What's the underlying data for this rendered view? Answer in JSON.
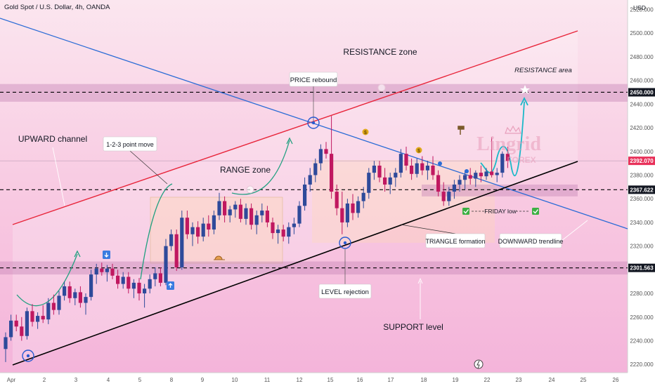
{
  "header": {
    "symbol_title": "Gold Spot / U.S. Dollar, 4h, OANDA",
    "currency": "USD"
  },
  "chart_data": {
    "type": "candlestick",
    "symbol": "Gold Spot / U.S. Dollar, 4h, OANDA",
    "ylim": [
      2213,
      2528
    ],
    "y_ticks": [
      2220,
      2240,
      2260,
      2280,
      2300,
      2320,
      2340,
      2360,
      2380,
      2400,
      2420,
      2440,
      2460,
      2480,
      2500,
      2520
    ],
    "x_ticks": [
      "Apr",
      "2",
      "3",
      "4",
      "5",
      "8",
      "9",
      "10",
      "11",
      "12",
      "15",
      "16",
      "17",
      "18",
      "19",
      "22",
      "23",
      "24",
      "25",
      "26"
    ],
    "price_labels": [
      {
        "value": 2450.0,
        "text": "2450.000",
        "style": "dark"
      },
      {
        "value": 2392.07,
        "text": "2392.070",
        "style": "red"
      },
      {
        "value": 2367.622,
        "text": "2367.622",
        "style": "dark"
      },
      {
        "value": 2301.563,
        "text": "2301.563",
        "style": "dark"
      }
    ],
    "candles": [
      {
        "o": 2233,
        "h": 2247,
        "l": 2222,
        "c": 2243
      },
      {
        "o": 2243,
        "h": 2262,
        "l": 2240,
        "c": 2257
      },
      {
        "o": 2257,
        "h": 2262,
        "l": 2248,
        "c": 2252
      },
      {
        "o": 2252,
        "h": 2260,
        "l": 2240,
        "c": 2244
      },
      {
        "o": 2244,
        "h": 2268,
        "l": 2241,
        "c": 2265
      },
      {
        "o": 2265,
        "h": 2271,
        "l": 2252,
        "c": 2256
      },
      {
        "o": 2256,
        "h": 2264,
        "l": 2250,
        "c": 2261
      },
      {
        "o": 2261,
        "h": 2270,
        "l": 2255,
        "c": 2258
      },
      {
        "o": 2258,
        "h": 2276,
        "l": 2254,
        "c": 2272
      },
      {
        "o": 2272,
        "h": 2279,
        "l": 2262,
        "c": 2266
      },
      {
        "o": 2266,
        "h": 2282,
        "l": 2262,
        "c": 2278
      },
      {
        "o": 2278,
        "h": 2290,
        "l": 2274,
        "c": 2286
      },
      {
        "o": 2286,
        "h": 2290,
        "l": 2272,
        "c": 2276
      },
      {
        "o": 2276,
        "h": 2284,
        "l": 2270,
        "c": 2281
      },
      {
        "o": 2281,
        "h": 2286,
        "l": 2268,
        "c": 2272
      },
      {
        "o": 2272,
        "h": 2280,
        "l": 2262,
        "c": 2277
      },
      {
        "o": 2277,
        "h": 2300,
        "l": 2274,
        "c": 2296
      },
      {
        "o": 2296,
        "h": 2305,
        "l": 2288,
        "c": 2301
      },
      {
        "o": 2301,
        "h": 2306,
        "l": 2295,
        "c": 2298
      },
      {
        "o": 2298,
        "h": 2304,
        "l": 2290,
        "c": 2301
      },
      {
        "o": 2301,
        "h": 2305,
        "l": 2292,
        "c": 2295
      },
      {
        "o": 2295,
        "h": 2300,
        "l": 2284,
        "c": 2288
      },
      {
        "o": 2288,
        "h": 2298,
        "l": 2284,
        "c": 2294
      },
      {
        "o": 2294,
        "h": 2298,
        "l": 2280,
        "c": 2284
      },
      {
        "o": 2284,
        "h": 2292,
        "l": 2276,
        "c": 2289
      },
      {
        "o": 2289,
        "h": 2293,
        "l": 2274,
        "c": 2280
      },
      {
        "o": 2280,
        "h": 2288,
        "l": 2268,
        "c": 2284
      },
      {
        "o": 2284,
        "h": 2296,
        "l": 2280,
        "c": 2292
      },
      {
        "o": 2292,
        "h": 2302,
        "l": 2286,
        "c": 2297
      },
      {
        "o": 2297,
        "h": 2302,
        "l": 2286,
        "c": 2289
      },
      {
        "o": 2289,
        "h": 2326,
        "l": 2287,
        "c": 2320
      },
      {
        "o": 2320,
        "h": 2334,
        "l": 2316,
        "c": 2330
      },
      {
        "o": 2330,
        "h": 2334,
        "l": 2299,
        "c": 2302
      },
      {
        "o": 2302,
        "h": 2350,
        "l": 2300,
        "c": 2344
      },
      {
        "o": 2344,
        "h": 2350,
        "l": 2326,
        "c": 2330
      },
      {
        "o": 2330,
        "h": 2340,
        "l": 2320,
        "c": 2336
      },
      {
        "o": 2336,
        "h": 2341,
        "l": 2322,
        "c": 2328
      },
      {
        "o": 2328,
        "h": 2344,
        "l": 2324,
        "c": 2339
      },
      {
        "o": 2339,
        "h": 2346,
        "l": 2328,
        "c": 2334
      },
      {
        "o": 2334,
        "h": 2350,
        "l": 2330,
        "c": 2346
      },
      {
        "o": 2346,
        "h": 2365,
        "l": 2342,
        "c": 2358
      },
      {
        "o": 2358,
        "h": 2362,
        "l": 2340,
        "c": 2346
      },
      {
        "o": 2346,
        "h": 2354,
        "l": 2340,
        "c": 2351
      },
      {
        "o": 2351,
        "h": 2358,
        "l": 2344,
        "c": 2355
      },
      {
        "o": 2355,
        "h": 2360,
        "l": 2340,
        "c": 2343
      },
      {
        "o": 2343,
        "h": 2356,
        "l": 2338,
        "c": 2352
      },
      {
        "o": 2352,
        "h": 2356,
        "l": 2334,
        "c": 2338
      },
      {
        "o": 2338,
        "h": 2350,
        "l": 2330,
        "c": 2346
      },
      {
        "o": 2346,
        "h": 2356,
        "l": 2340,
        "c": 2350
      },
      {
        "o": 2350,
        "h": 2354,
        "l": 2336,
        "c": 2340
      },
      {
        "o": 2340,
        "h": 2344,
        "l": 2326,
        "c": 2331
      },
      {
        "o": 2331,
        "h": 2338,
        "l": 2322,
        "c": 2334
      },
      {
        "o": 2334,
        "h": 2338,
        "l": 2324,
        "c": 2328
      },
      {
        "o": 2328,
        "h": 2340,
        "l": 2322,
        "c": 2336
      },
      {
        "o": 2336,
        "h": 2344,
        "l": 2330,
        "c": 2339
      },
      {
        "o": 2339,
        "h": 2358,
        "l": 2336,
        "c": 2354
      },
      {
        "o": 2354,
        "h": 2378,
        "l": 2350,
        "c": 2372
      },
      {
        "o": 2372,
        "h": 2386,
        "l": 2366,
        "c": 2380
      },
      {
        "o": 2380,
        "h": 2394,
        "l": 2374,
        "c": 2390
      },
      {
        "o": 2390,
        "h": 2406,
        "l": 2384,
        "c": 2402
      },
      {
        "o": 2402,
        "h": 2408,
        "l": 2394,
        "c": 2398
      },
      {
        "o": 2398,
        "h": 2430,
        "l": 2360,
        "c": 2366
      },
      {
        "o": 2366,
        "h": 2372,
        "l": 2346,
        "c": 2352
      },
      {
        "o": 2352,
        "h": 2366,
        "l": 2330,
        "c": 2340
      },
      {
        "o": 2340,
        "h": 2360,
        "l": 2336,
        "c": 2356
      },
      {
        "o": 2356,
        "h": 2364,
        "l": 2342,
        "c": 2348
      },
      {
        "o": 2348,
        "h": 2362,
        "l": 2344,
        "c": 2358
      },
      {
        "o": 2358,
        "h": 2370,
        "l": 2352,
        "c": 2365
      },
      {
        "o": 2365,
        "h": 2386,
        "l": 2360,
        "c": 2382
      },
      {
        "o": 2382,
        "h": 2392,
        "l": 2376,
        "c": 2388
      },
      {
        "o": 2388,
        "h": 2392,
        "l": 2374,
        "c": 2378
      },
      {
        "o": 2378,
        "h": 2386,
        "l": 2366,
        "c": 2372
      },
      {
        "o": 2372,
        "h": 2382,
        "l": 2364,
        "c": 2378
      },
      {
        "o": 2378,
        "h": 2386,
        "l": 2370,
        "c": 2382
      },
      {
        "o": 2382,
        "h": 2402,
        "l": 2378,
        "c": 2398
      },
      {
        "o": 2398,
        "h": 2404,
        "l": 2384,
        "c": 2388
      },
      {
        "o": 2388,
        "h": 2394,
        "l": 2376,
        "c": 2381
      },
      {
        "o": 2381,
        "h": 2394,
        "l": 2378,
        "c": 2390
      },
      {
        "o": 2390,
        "h": 2396,
        "l": 2380,
        "c": 2384
      },
      {
        "o": 2384,
        "h": 2392,
        "l": 2376,
        "c": 2388
      },
      {
        "o": 2388,
        "h": 2396,
        "l": 2376,
        "c": 2380
      },
      {
        "o": 2380,
        "h": 2384,
        "l": 2362,
        "c": 2366
      },
      {
        "o": 2366,
        "h": 2374,
        "l": 2354,
        "c": 2358
      },
      {
        "o": 2358,
        "h": 2370,
        "l": 2354,
        "c": 2366
      },
      {
        "o": 2366,
        "h": 2376,
        "l": 2360,
        "c": 2372
      },
      {
        "o": 2372,
        "h": 2380,
        "l": 2366,
        "c": 2376
      },
      {
        "o": 2376,
        "h": 2384,
        "l": 2368,
        "c": 2380
      },
      {
        "o": 2380,
        "h": 2386,
        "l": 2372,
        "c": 2377
      },
      {
        "o": 2377,
        "h": 2384,
        "l": 2370,
        "c": 2382
      },
      {
        "o": 2382,
        "h": 2388,
        "l": 2374,
        "c": 2379
      },
      {
        "o": 2379,
        "h": 2386,
        "l": 2376,
        "c": 2383
      },
      {
        "o": 2383,
        "h": 2412,
        "l": 2378,
        "c": 2380
      },
      {
        "o": 2380,
        "h": 2386,
        "l": 2374,
        "c": 2382
      },
      {
        "o": 2382,
        "h": 2400,
        "l": 2378,
        "c": 2398
      },
      {
        "o": 2398,
        "h": 2404,
        "l": 2386,
        "c": 2392
      }
    ],
    "zones": [
      {
        "from": 2442,
        "to": 2457,
        "kind": "resistance"
      },
      {
        "from": 2296,
        "to": 2307,
        "kind": "support"
      },
      {
        "from": 2362,
        "to": 2372,
        "kind": "friday-low"
      }
    ],
    "annotations": [
      {
        "text": "RESISTANCE zone",
        "kind": "plain"
      },
      {
        "text": "RESISTANCE area",
        "kind": "italic"
      },
      {
        "text": "PRICE rebound",
        "kind": "callout"
      },
      {
        "text": "UPWARD channel",
        "kind": "plain"
      },
      {
        "text": "1-2-3 point move",
        "kind": "callout"
      },
      {
        "text": "RANGE zone",
        "kind": "plain"
      },
      {
        "text": "TRIANGLE formation",
        "kind": "callout"
      },
      {
        "text": "DOWNWARD trendline",
        "kind": "callout"
      },
      {
        "text": "LEVEL rejection",
        "kind": "callout"
      },
      {
        "text": "SUPPORT level",
        "kind": "plain"
      },
      {
        "text": "FRIDAY low",
        "kind": "plain"
      }
    ],
    "watermark": {
      "brand": "Lingrid",
      "sub": "FOREX"
    },
    "colors": {
      "up": "#2e4a9a",
      "down": "#c01860",
      "channel_upper": "#e8253a",
      "downtrend": "#2a6bd6",
      "support_trend": "#000000",
      "projection": "#19b8c8",
      "arc": "#22a080"
    }
  }
}
